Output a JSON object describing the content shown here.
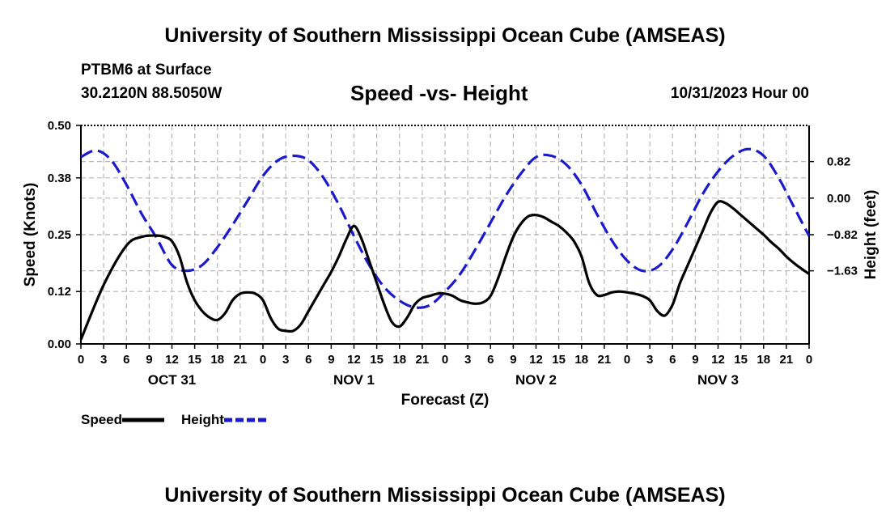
{
  "header": {
    "title": "University of Southern Mississippi Ocean Cube (AMSEAS)",
    "station": "PTBM6 at Surface",
    "coords": "30.2120N  88.5050W",
    "subtitle": "Speed -vs- Height",
    "datetime": "10/31/2023 Hour 00"
  },
  "footer": {
    "title": "University of Southern Mississippi Ocean Cube (AMSEAS)"
  },
  "chart_data": {
    "type": "line",
    "xlabel": "Forecast (Z)",
    "ylabel_left": "Speed (Knots)",
    "ylabel_right": "Height (feet)",
    "x_range": [
      0,
      96
    ],
    "x_tick_labels": [
      "0",
      "3",
      "6",
      "9",
      "12",
      "15",
      "18",
      "21",
      "0",
      "3",
      "6",
      "9",
      "12",
      "15",
      "18",
      "21",
      "0",
      "3",
      "6",
      "9",
      "12",
      "15",
      "18",
      "21",
      "0",
      "3",
      "6",
      "9",
      "12",
      "15",
      "18",
      "21",
      "0"
    ],
    "date_labels": [
      {
        "hour": 12,
        "label": "OCT 31"
      },
      {
        "hour": 36,
        "label": "NOV 1"
      },
      {
        "hour": 60,
        "label": "NOV 2"
      },
      {
        "hour": 84,
        "label": "NOV 3"
      }
    ],
    "y_left": {
      "range": [
        0,
        0.5
      ],
      "ticks": [
        "0.00",
        "0.12",
        "0.25",
        "0.38",
        "0.50"
      ]
    },
    "y_right": {
      "range": [
        -3.27,
        1.63
      ],
      "ticks": [
        {
          "value": 0.82,
          "label": "0.82"
        },
        {
          "value": 0.0,
          "label": "0.00"
        },
        {
          "value": -0.82,
          "label": "−0.82"
        },
        {
          "value": -1.63,
          "label": "−1.63"
        }
      ]
    },
    "series": [
      {
        "name": "Speed",
        "axis": "left",
        "color": "#000000",
        "style": "solid",
        "x": [
          0,
          3,
          6,
          8,
          10,
          11,
          12,
          13,
          14,
          15,
          16,
          17,
          18,
          19,
          20,
          21,
          22,
          23,
          24,
          25,
          26,
          27,
          28,
          29,
          30,
          31,
          32,
          33,
          34,
          35,
          36,
          37,
          38,
          39,
          40,
          41,
          42,
          43,
          44,
          45,
          46,
          47,
          48,
          49,
          50,
          51,
          52,
          53,
          54,
          55,
          56,
          57,
          58,
          59,
          60,
          61,
          62,
          63,
          64,
          65,
          66,
          67,
          68,
          69,
          70,
          71,
          72,
          73,
          74,
          75,
          76,
          77,
          78,
          79,
          80,
          81,
          82,
          83,
          84,
          85,
          86,
          87,
          88,
          89,
          90,
          91,
          92,
          93,
          94,
          95,
          96
        ],
        "y": [
          0.01,
          0.135,
          0.225,
          0.245,
          0.248,
          0.245,
          0.235,
          0.2,
          0.14,
          0.1,
          0.075,
          0.06,
          0.055,
          0.07,
          0.1,
          0.115,
          0.118,
          0.115,
          0.1,
          0.06,
          0.035,
          0.03,
          0.03,
          0.045,
          0.075,
          0.105,
          0.135,
          0.165,
          0.2,
          0.24,
          0.27,
          0.24,
          0.19,
          0.14,
          0.09,
          0.05,
          0.04,
          0.06,
          0.09,
          0.105,
          0.11,
          0.115,
          0.115,
          0.11,
          0.1,
          0.095,
          0.092,
          0.095,
          0.11,
          0.15,
          0.2,
          0.245,
          0.275,
          0.292,
          0.295,
          0.29,
          0.28,
          0.27,
          0.255,
          0.235,
          0.2,
          0.14,
          0.112,
          0.112,
          0.118,
          0.12,
          0.118,
          0.115,
          0.11,
          0.1,
          0.075,
          0.065,
          0.09,
          0.14,
          0.18,
          0.22,
          0.26,
          0.3,
          0.325,
          0.322,
          0.31,
          0.295,
          0.28,
          0.265,
          0.25,
          0.233,
          0.218,
          0.2,
          0.185,
          0.172,
          0.16
        ]
      },
      {
        "name": "Height",
        "axis": "right",
        "color": "#1a1acc",
        "style": "dashed",
        "x": [
          0,
          2,
          4,
          6,
          8,
          10,
          12,
          14,
          16,
          18,
          20,
          22,
          24,
          26,
          28,
          30,
          32,
          34,
          36,
          38,
          40,
          42,
          44,
          46,
          48,
          50,
          52,
          54,
          56,
          58,
          60,
          62,
          64,
          66,
          68,
          70,
          72,
          74,
          76,
          78,
          80,
          82,
          84,
          86,
          88,
          90,
          92,
          94,
          96
        ],
        "y": [
          0.92,
          1.07,
          0.85,
          0.3,
          -0.35,
          -0.9,
          -1.5,
          -1.63,
          -1.5,
          -1.1,
          -0.6,
          -0.05,
          0.5,
          0.85,
          0.95,
          0.85,
          0.45,
          -0.15,
          -0.85,
          -1.5,
          -2.0,
          -2.3,
          -2.45,
          -2.4,
          -2.1,
          -1.7,
          -1.15,
          -0.55,
          0.05,
          0.55,
          0.92,
          0.95,
          0.75,
          0.3,
          -0.35,
          -0.95,
          -1.4,
          -1.63,
          -1.55,
          -1.15,
          -0.55,
          0.1,
          0.6,
          0.95,
          1.1,
          0.95,
          0.45,
          -0.2,
          -0.85
        ]
      }
    ]
  },
  "legend": [
    {
      "name": "Speed",
      "color": "#000000",
      "style": "solid"
    },
    {
      "name": "Height",
      "color": "#1a1acc",
      "style": "dashed"
    }
  ]
}
